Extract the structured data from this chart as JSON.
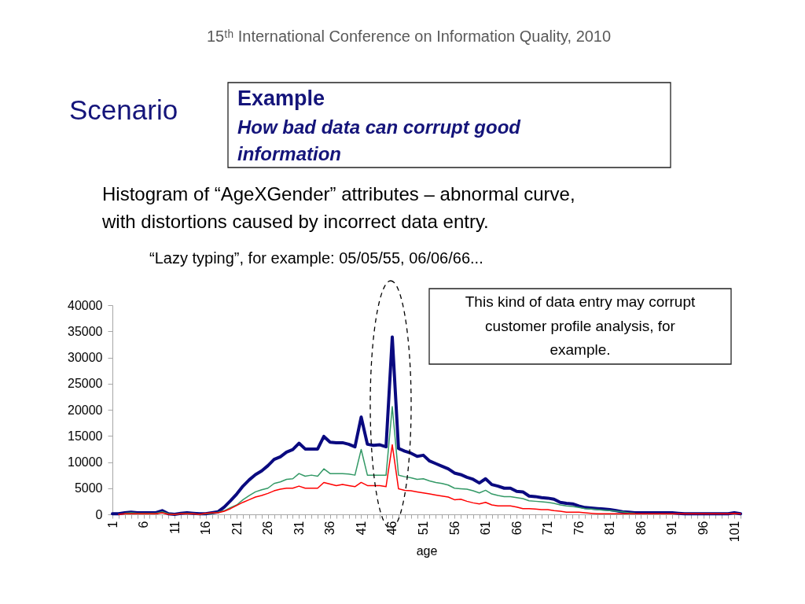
{
  "chart_data": {
    "type": "line",
    "title": "Histogram of “AgeXGender” attributes – abnormal curve, with distortions caused by incorrect data entry.",
    "subtitle": "“Lazy typing”, for example: 05/05/55, 06/06/66...",
    "xlabel": "age",
    "annotations": [
      "15ᵗʰ International Conference on Information Quality, 2010",
      "Scenario",
      "Example",
      "How bad data can corrupt good information",
      "This kind of data entry may corrupt customer profile analysis, for example."
    ],
    "categories": [
      "1",
      null,
      null,
      null,
      null,
      "6",
      null,
      null,
      null,
      null,
      "11",
      null,
      null,
      null,
      null,
      "16",
      null,
      null,
      null,
      null,
      "21",
      null,
      null,
      null,
      null,
      "26",
      null,
      null,
      null,
      null,
      "31",
      null,
      null,
      null,
      null,
      "36",
      null,
      null,
      null,
      null,
      "41",
      null,
      null,
      null,
      null,
      "46",
      null,
      null,
      null,
      null,
      "51",
      null,
      null,
      null,
      null,
      "56",
      null,
      null,
      null,
      null,
      "61",
      null,
      null,
      null,
      null,
      "66",
      null,
      null,
      null,
      null,
      "71",
      null,
      null,
      null,
      null,
      "76",
      null,
      null,
      null,
      null,
      "81",
      null,
      null,
      null,
      null,
      "86",
      null,
      null,
      null,
      null,
      "91",
      null,
      null,
      null,
      null,
      "96",
      null,
      null,
      null,
      null,
      "101",
      null
    ],
    "series": [
      {
        "color": "#0a0a80",
        "values": [
          100,
          100,
          300,
          400,
          300,
          300,
          300,
          300,
          700,
          100,
          0,
          200,
          300,
          200,
          100,
          100,
          300,
          500,
          1400,
          2600,
          3900,
          5400,
          6600,
          7600,
          8300,
          9300,
          10500,
          11000,
          11900,
          12400,
          13600,
          12500,
          12500,
          12500,
          14900,
          13800,
          13700,
          13700,
          13400,
          12900,
          18600,
          13400,
          13200,
          13300,
          12900,
          33900,
          12600,
          12100,
          11700,
          11100,
          11300,
          10200,
          9700,
          9200,
          8700,
          7900,
          7600,
          7100,
          6700,
          6000,
          6800,
          5700,
          5400,
          5000,
          5000,
          4400,
          4300,
          3500,
          3400,
          3200,
          3100,
          2900,
          2300,
          2100,
          2000,
          1600,
          1300,
          1200,
          1100,
          1000,
          900,
          700,
          500,
          400,
          300,
          300,
          300,
          300,
          300,
          300,
          300,
          200,
          100,
          100,
          100,
          100,
          100,
          100,
          100,
          100,
          300,
          100
        ]
      },
      {
        "color": "#339966",
        "values": [
          null,
          null,
          200,
          300,
          200,
          200,
          200,
          200,
          500,
          100,
          0,
          100,
          200,
          100,
          0,
          100,
          200,
          400,
          700,
          1300,
          1800,
          2800,
          3600,
          4300,
          4700,
          5000,
          5900,
          6200,
          6700,
          6800,
          7800,
          7300,
          7500,
          7300,
          8700,
          7800,
          7800,
          7800,
          7700,
          7500,
          12400,
          7500,
          7500,
          7500,
          7500,
          20600,
          7500,
          7200,
          7000,
          6700,
          6800,
          6400,
          6100,
          5900,
          5600,
          5000,
          4900,
          4800,
          4500,
          4100,
          4600,
          3900,
          3600,
          3400,
          3400,
          3200,
          3000,
          2600,
          2500,
          2400,
          2300,
          2100,
          1800,
          1600,
          1500,
          1300,
          1100,
          1000,
          900,
          800,
          700,
          600,
          500,
          300,
          200,
          null,
          null,
          null,
          null,
          null,
          null,
          null,
          null,
          null,
          null,
          null,
          null,
          null,
          null,
          null,
          null,
          null
        ]
      },
      {
        "color": "#ff0000",
        "values": [
          null,
          0,
          100,
          100,
          100,
          100,
          100,
          100,
          300,
          0,
          0,
          100,
          100,
          100,
          0,
          200,
          300,
          300,
          600,
          1100,
          1700,
          2300,
          2800,
          3300,
          3600,
          4000,
          4500,
          4800,
          5000,
          5000,
          5400,
          5000,
          5000,
          5000,
          6100,
          5800,
          5500,
          5700,
          5500,
          5300,
          6100,
          5500,
          5500,
          5500,
          5300,
          13300,
          4900,
          4600,
          4500,
          4300,
          4100,
          3900,
          3700,
          3500,
          3300,
          2800,
          2900,
          2500,
          2200,
          2000,
          2300,
          1800,
          1600,
          1600,
          1600,
          1400,
          1100,
          1100,
          1000,
          900,
          900,
          700,
          600,
          400,
          400,
          400,
          300,
          200,
          100,
          100,
          100,
          100,
          100,
          100,
          100,
          100,
          100,
          100,
          100,
          100,
          100,
          100,
          100,
          100,
          100,
          100,
          100,
          100,
          100,
          100,
          200,
          100
        ]
      }
    ],
    "ylim": [
      0,
      40000
    ],
    "yticks": [
      0,
      5000,
      10000,
      15000,
      20000,
      25000,
      30000,
      35000,
      40000
    ],
    "line_style": "solid"
  }
}
